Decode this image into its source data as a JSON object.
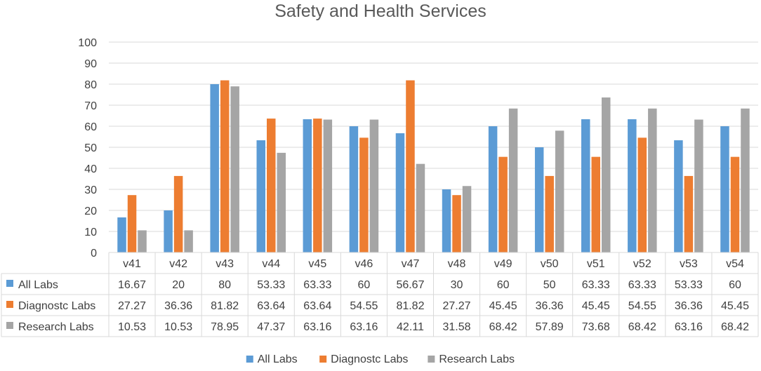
{
  "chart_data": {
    "type": "bar",
    "title": "Safety and Health Services",
    "categories": [
      "v41",
      "v42",
      "v43",
      "v44",
      "v45",
      "v46",
      "v47",
      "v48",
      "v49",
      "v50",
      "v51",
      "v52",
      "v53",
      "v54"
    ],
    "ylim": [
      0,
      100
    ],
    "yticks": [
      0,
      10,
      20,
      30,
      40,
      50,
      60,
      70,
      80,
      90,
      100
    ],
    "grid": true,
    "legend_position": "bottom",
    "data_table": true,
    "series": [
      {
        "name": "All Labs",
        "color": "#5B9BD5",
        "values": [
          16.67,
          20,
          80,
          53.33,
          63.33,
          60,
          56.67,
          30,
          60,
          50,
          63.33,
          63.33,
          53.33,
          60
        ],
        "labels": [
          "16.67",
          "20",
          "80",
          "53.33",
          "63.33",
          "60",
          "56.67",
          "30",
          "60",
          "50",
          "63.33",
          "63.33",
          "53.33",
          "60"
        ]
      },
      {
        "name": "Diagnostc Labs",
        "color": "#ED7D31",
        "values": [
          27.27,
          36.36,
          81.82,
          63.64,
          63.64,
          54.55,
          81.82,
          27.27,
          45.45,
          36.36,
          45.45,
          54.55,
          36.36,
          45.45
        ],
        "labels": [
          "27.27",
          "36.36",
          "81.82",
          "63.64",
          "63.64",
          "54.55",
          "81.82",
          "27.27",
          "45.45",
          "36.36",
          "45.45",
          "54.55",
          "36.36",
          "45.45"
        ]
      },
      {
        "name": "Research Labs",
        "color": "#A5A5A5",
        "values": [
          10.53,
          10.53,
          78.95,
          47.37,
          63.16,
          63.16,
          42.11,
          31.58,
          68.42,
          57.89,
          73.68,
          68.42,
          63.16,
          68.42
        ],
        "labels": [
          "10.53",
          "10.53",
          "78.95",
          "47.37",
          "63.16",
          "63.16",
          "42.11",
          "31.58",
          "68.42",
          "57.89",
          "73.68",
          "68.42",
          "63.16",
          "68.42"
        ]
      }
    ]
  }
}
